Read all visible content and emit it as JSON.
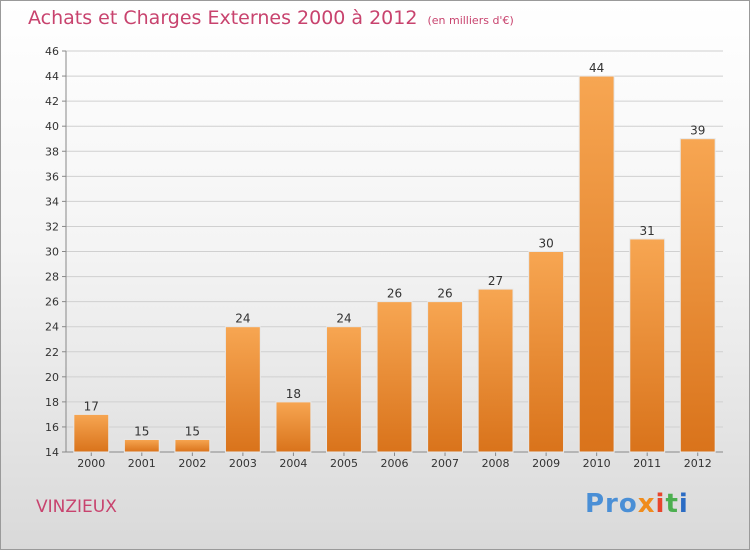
{
  "header": {
    "title": "Achats et Charges Externes 2000 à 2012",
    "unit": "(en milliers d'€)"
  },
  "footer": {
    "commune": "VINZIEUX",
    "logo_parts": [
      "Pro",
      "x",
      "i",
      "t",
      "i"
    ]
  },
  "colors": {
    "bar_top": "#f7a652",
    "bar_bottom": "#d9731b",
    "title": "#c8436e",
    "grid": "#d0d0d0"
  },
  "chart_data": {
    "type": "bar",
    "title": "Achats et Charges Externes 2000 à 2012",
    "subtitle": "(en milliers d'€)",
    "categories": [
      "2000",
      "2001",
      "2002",
      "2003",
      "2004",
      "2005",
      "2006",
      "2007",
      "2008",
      "2009",
      "2010",
      "2011",
      "2012"
    ],
    "values": [
      17,
      15,
      15,
      24,
      18,
      24,
      26,
      26,
      27,
      30,
      44,
      31,
      39
    ],
    "ylim": [
      14,
      46
    ],
    "yticks": [
      14,
      16,
      18,
      20,
      22,
      24,
      26,
      28,
      30,
      32,
      34,
      36,
      38,
      40,
      42,
      44,
      46
    ],
    "grid": true,
    "legend": "none"
  }
}
